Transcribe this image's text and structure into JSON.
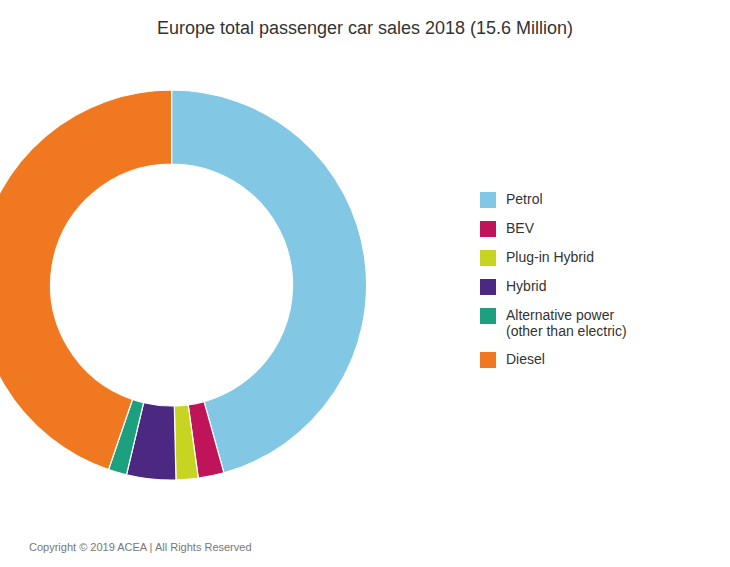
{
  "chart_data": {
    "type": "pie",
    "title": "Europe total passenger car sales 2018 (15.6 Million)",
    "categories": [
      "Petrol",
      "BEV",
      "Plug-in Hybrid",
      "Hybrid",
      "Alternative power\n(other than electric)",
      "Diesel"
    ],
    "values": [
      44.9,
      2.1,
      1.8,
      4.0,
      1.5,
      44.0
    ],
    "colors": [
      "#82C8E5",
      "#C0145A",
      "#C8D422",
      "#4B2882",
      "#1DA080",
      "#F07820"
    ],
    "legend": "right",
    "annotations": [
      "Copyright © 2019 ACEA | All Rights Reserved"
    ]
  }
}
